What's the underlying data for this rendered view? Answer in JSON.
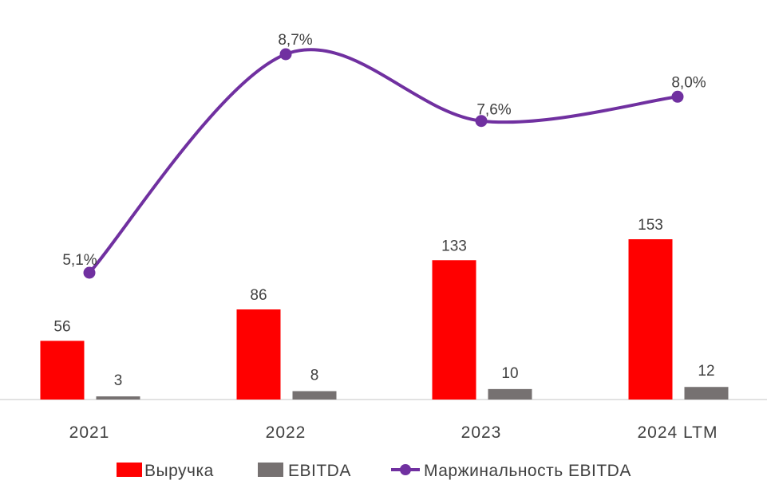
{
  "chart_data": {
    "type": "bar",
    "categories": [
      "2021",
      "2022",
      "2023",
      "2024 LTM"
    ],
    "series": [
      {
        "name": "Выручка",
        "type": "bar",
        "color": "#ff0000",
        "values": [
          56,
          86,
          133,
          153
        ],
        "labels": [
          "56",
          "86",
          "133",
          "153"
        ]
      },
      {
        "name": "EBITDA",
        "type": "bar",
        "color": "#767171",
        "values": [
          3,
          8,
          10,
          12
        ],
        "labels": [
          "3",
          "8",
          "10",
          "12"
        ]
      },
      {
        "name": "Маржинальность EBITDA",
        "type": "line",
        "color": "#7030a0",
        "values": [
          5.1,
          8.7,
          7.6,
          8.0
        ],
        "labels": [
          "5,1%",
          "8,7%",
          "7,6%",
          "8,0%"
        ],
        "smooth": true,
        "axis": "secondary"
      }
    ],
    "legend_position": "bottom",
    "grid": false
  }
}
